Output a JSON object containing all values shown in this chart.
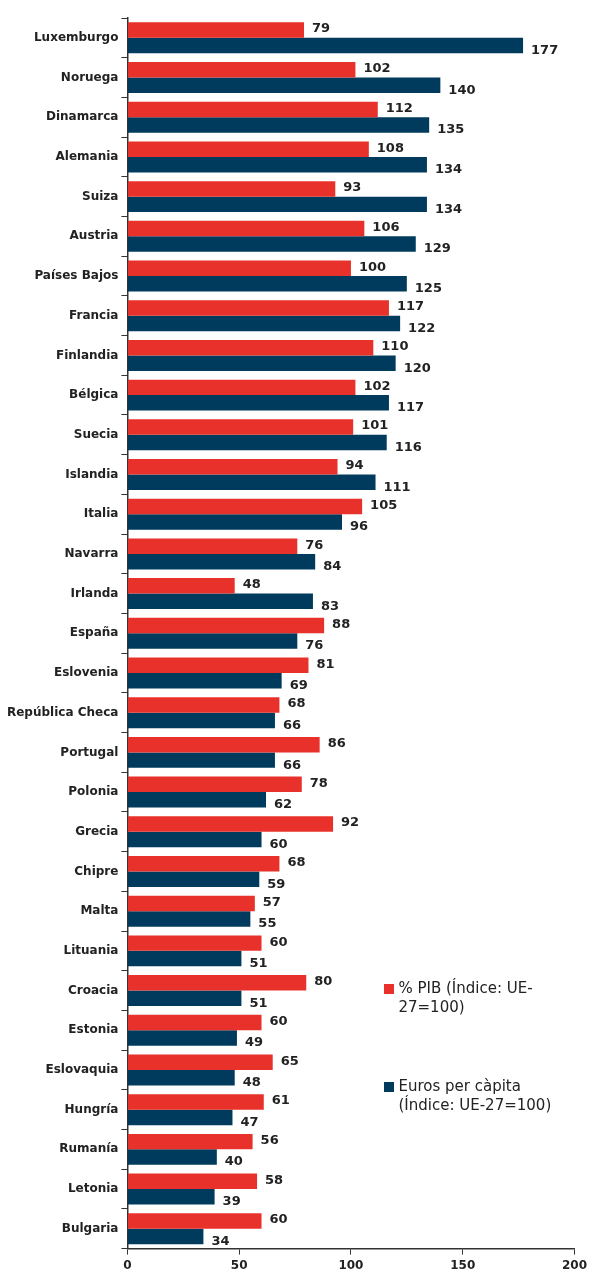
{
  "chart_data": {
    "type": "bar",
    "orientation": "horizontal",
    "categories": [
      "Luxemburgo",
      "Noruega",
      "Dinamarca",
      "Alemania",
      "Suiza",
      "Austria",
      "Países Bajos",
      "Francia",
      "Finlandia",
      "Bélgica",
      "Suecia",
      "Islandia",
      "Italia",
      "Navarra",
      "Irlanda",
      "España",
      "Eslovenia",
      "República Checa",
      "Portugal",
      "Polonia",
      "Grecia",
      "Chipre",
      "Malta",
      "Lituania",
      "Croacia",
      "Estonia",
      "Eslovaquia",
      "Hungría",
      "Rumanía",
      "Letonia",
      "Bulgaria"
    ],
    "series": [
      {
        "name": "% PIB (Índice: UE-27=100)",
        "color": "#e8312a",
        "values": [
          79,
          102,
          112,
          108,
          93,
          106,
          100,
          117,
          110,
          102,
          101,
          94,
          105,
          76,
          48,
          88,
          81,
          68,
          86,
          78,
          92,
          68,
          57,
          60,
          80,
          60,
          65,
          61,
          56,
          58,
          60
        ]
      },
      {
        "name": "Euros per càpita (Índice: UE-27=100)",
        "color": "#003a5c",
        "values": [
          177,
          140,
          135,
          134,
          134,
          129,
          125,
          122,
          120,
          117,
          116,
          111,
          96,
          84,
          83,
          76,
          69,
          66,
          66,
          62,
          60,
          59,
          55,
          51,
          51,
          49,
          48,
          47,
          40,
          39,
          34
        ]
      }
    ],
    "xlim": [
      0,
      200
    ],
    "xticks": [
      0,
      50,
      100,
      150,
      200
    ],
    "data_labels": true,
    "grid": false,
    "legend": "bottom right"
  }
}
